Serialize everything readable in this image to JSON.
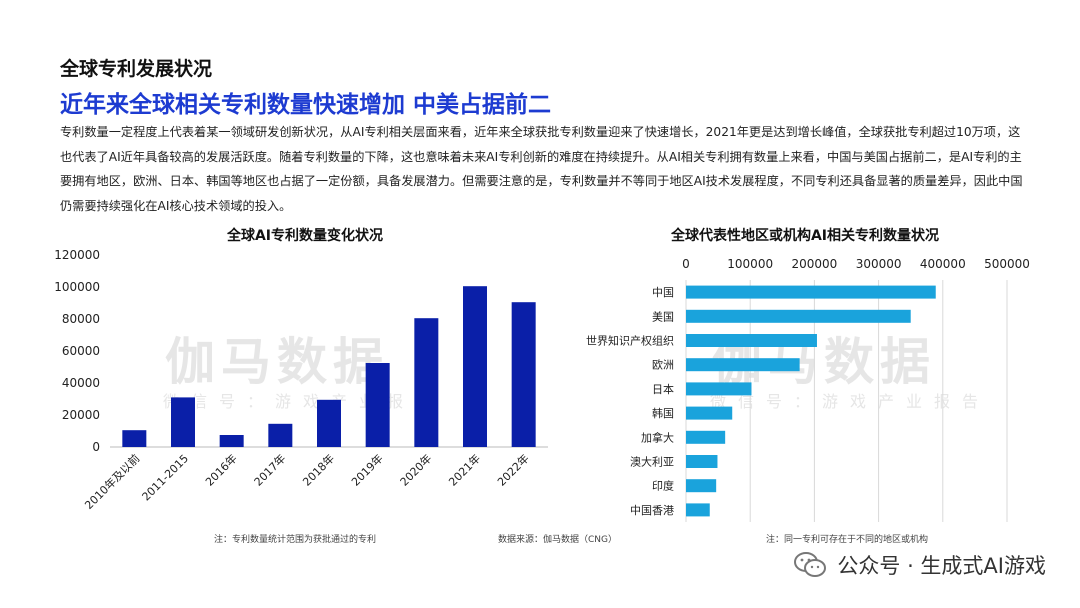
{
  "section_title": "全球专利发展状况",
  "headline": "近年来全球相关专利数量快速增加  中美占据前二",
  "paragraph": "专利数量一定程度上代表着某一领域研发创新状况，从AI专利相关层面来看，近年来全球获批专利数量迎来了快速增长，2021年更是达到增长峰值，全球获批专利超过10万项，这也代表了AI近年具备较高的发展活跃度。随着专利数量的下降，这也意味着未来AI专利创新的难度在持续提升。从AI相关专利拥有数量上来看，中国与美国占据前二，是AI专利的主要拥有地区，欧洲、日本、韩国等地区也占据了一定份额，具备发展潜力。但需要注意的是，专利数量并不等同于地区AI技术发展程度，不同专利还具备显著的质量差异，因此中国仍需要持续强化在AI核心技术领域的投入。",
  "watermark": {
    "big": "伽马数据",
    "small": "微信号：游戏产业报告"
  },
  "chart_data": [
    {
      "type": "bar",
      "title": "全球AI专利数量变化状况",
      "categories": [
        "2010年及以前",
        "2011-2015",
        "2016年",
        "2017年",
        "2018年",
        "2019年",
        "2020年",
        "2021年",
        "2022年"
      ],
      "values": [
        10500,
        31000,
        7500,
        14500,
        29500,
        52500,
        80500,
        100500,
        90500
      ],
      "ylim": [
        0,
        120000
      ],
      "yticks": [
        "0",
        "20000",
        "40000",
        "60000",
        "80000",
        "100000",
        "120000"
      ],
      "ytick_values": [
        0,
        20000,
        40000,
        60000,
        80000,
        100000,
        120000
      ],
      "color": "#0a1fa8",
      "note": "注：专利数量统计范围为获批通过的专利"
    },
    {
      "type": "bar",
      "orientation": "horizontal",
      "title": "全球代表性地区或机构AI相关专利数量状况",
      "categories": [
        "中国",
        "美国",
        "世界知识产权组织",
        "欧洲",
        "日本",
        "韩国",
        "加拿大",
        "澳大利亚",
        "印度",
        "中国香港"
      ],
      "values": [
        389000,
        350000,
        204000,
        177000,
        102000,
        72000,
        61000,
        49000,
        47000,
        37000
      ],
      "xlim": [
        0,
        500000
      ],
      "xticks": [
        "0",
        "100000",
        "200000",
        "300000",
        "400000",
        "500000"
      ],
      "xtick_values": [
        0,
        100000,
        200000,
        300000,
        400000,
        500000
      ],
      "color": "#1aa3dc",
      "note": "注：同一专利可存在于不同的地区或机构"
    }
  ],
  "source": "数据来源：伽马数据（CNG）",
  "footer": {
    "text": "公众号 · 生成式AI游戏",
    "icon": "wechat-icon"
  }
}
